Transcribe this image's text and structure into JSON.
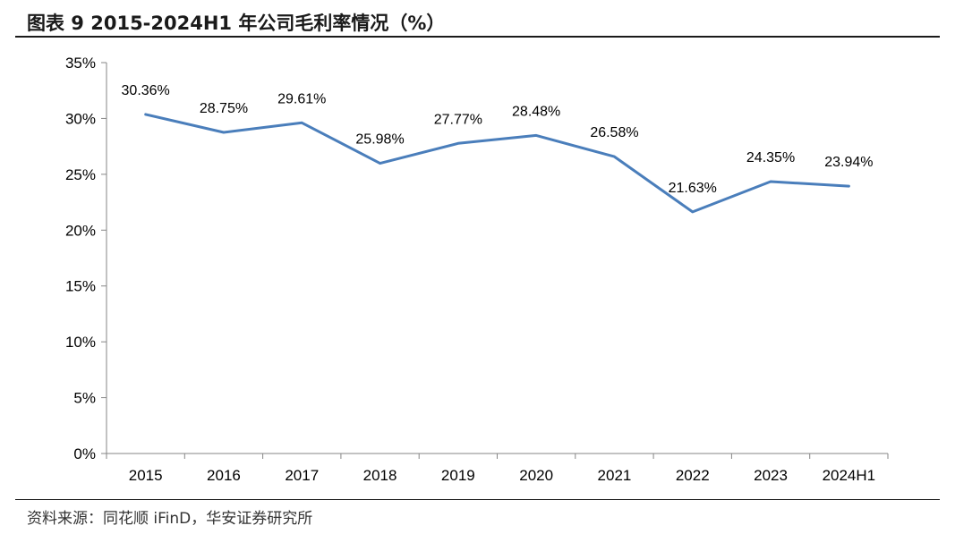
{
  "figure": {
    "title": "图表 9 2015-2024H1 年公司毛利率情况（%）",
    "source": "资料来源：同花顺 iFinD，华安证券研究所"
  },
  "chart_data": {
    "type": "line",
    "title": "图表 9 2015-2024H1 年公司毛利率情况（%）",
    "xlabel": "",
    "ylabel": "",
    "categories": [
      "2015",
      "2016",
      "2017",
      "2018",
      "2019",
      "2020",
      "2021",
      "2022",
      "2023",
      "2024H1"
    ],
    "series": [
      {
        "name": "毛利率",
        "values": [
          30.36,
          28.75,
          29.61,
          25.98,
          27.77,
          28.48,
          26.58,
          21.63,
          24.35,
          23.94
        ],
        "labels": [
          "30.36%",
          "28.75%",
          "29.61%",
          "25.98%",
          "27.77%",
          "28.48%",
          "26.58%",
          "21.63%",
          "24.35%",
          "23.94%"
        ],
        "color": "#4a7ebb"
      }
    ],
    "ylim": [
      0,
      35
    ],
    "yticks": [
      0,
      5,
      10,
      15,
      20,
      25,
      30,
      35
    ],
    "ytick_labels": [
      "0%",
      "5%",
      "10%",
      "15%",
      "20%",
      "25%",
      "30%",
      "35%"
    ],
    "grid": false,
    "legend": "none"
  }
}
